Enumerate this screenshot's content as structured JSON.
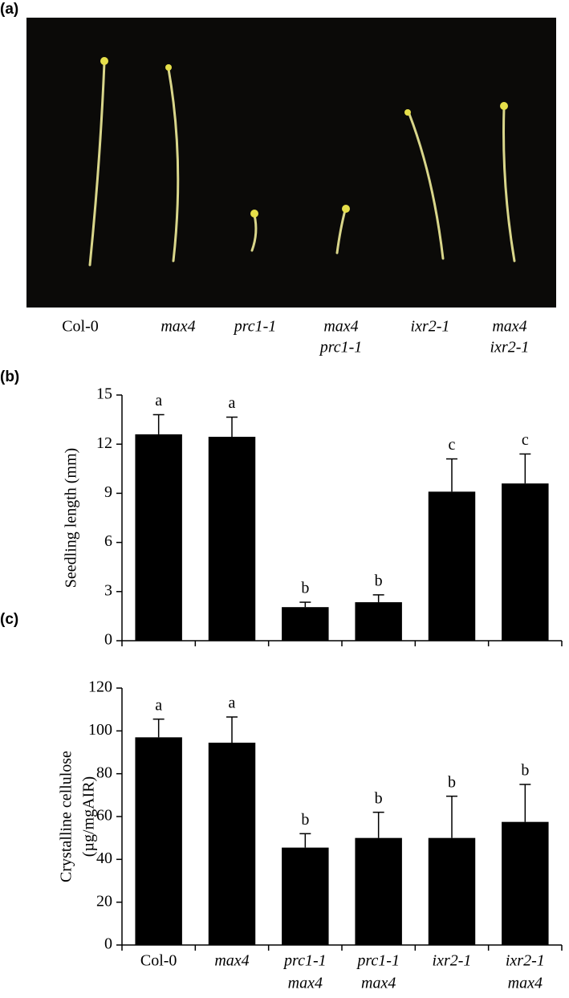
{
  "photo": {
    "panel_label": "(a)",
    "captions": [
      [
        "Col-0"
      ],
      [
        "max4"
      ],
      [
        "prc1-1"
      ],
      [
        "max4",
        "prc1-1"
      ],
      [
        "ixr2-1"
      ],
      [
        "max4",
        "ixr2-1"
      ]
    ]
  },
  "chart_data": [
    {
      "type": "bar",
      "panel_label": "(b)",
      "ylabel": [
        "Seedling length (mm)"
      ],
      "values": [
        12.6,
        12.45,
        2.05,
        2.35,
        9.1,
        9.6
      ],
      "errors": [
        1.2,
        1.2,
        0.3,
        0.45,
        2.0,
        1.8
      ],
      "letters": [
        "a",
        "a",
        "b",
        "b",
        "c",
        "c"
      ],
      "color": "#000000",
      "ylim": [
        0,
        15
      ],
      "yticks": [
        0,
        3,
        6,
        9,
        12,
        15
      ]
    },
    {
      "type": "bar",
      "panel_label": "(c)",
      "ylabel": [
        "Crystalline cellulose",
        "(µg/mgAIR)"
      ],
      "categories": [
        [
          "Col-0"
        ],
        [
          "max4"
        ],
        [
          "prc1-1",
          "max4"
        ],
        [
          "prc1-1",
          "max4"
        ],
        [
          "ixr2-1"
        ],
        [
          "ixr2-1",
          "max4"
        ]
      ],
      "values": [
        97,
        94.5,
        45.5,
        50,
        50,
        57.5
      ],
      "errors": [
        8.5,
        12,
        6.5,
        12,
        19.5,
        17.5
      ],
      "letters": [
        "a",
        "a",
        "b",
        "b",
        "b",
        "b"
      ],
      "color": "#000000",
      "ylim": [
        0,
        120
      ],
      "yticks": [
        0,
        20,
        40,
        60,
        80,
        100,
        120
      ]
    }
  ]
}
